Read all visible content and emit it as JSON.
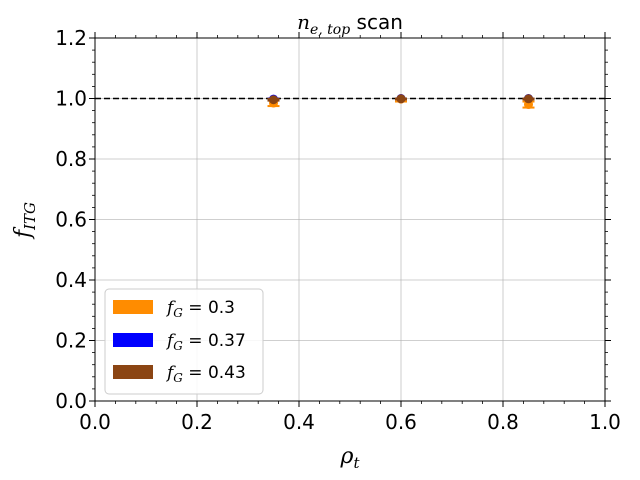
{
  "chart_data": {
    "type": "scatter",
    "title": {
      "main": "n",
      "sub": "e, top",
      "suffix": " scan"
    },
    "xlabel": {
      "main": "ρ",
      "sub": "t"
    },
    "ylabel": {
      "main": "f",
      "sub": "ITG"
    },
    "xlim": [
      0.0,
      1.0
    ],
    "ylim": [
      0.0,
      1.2
    ],
    "xticks": [
      "0.0",
      "0.2",
      "0.4",
      "0.6",
      "0.8",
      "1.0"
    ],
    "yticks": [
      "0.0",
      "0.2",
      "0.4",
      "0.6",
      "0.8",
      "1.0",
      "1.2"
    ],
    "grid": true,
    "reference_line": {
      "y": 1.0,
      "style": "dashed",
      "color": "#000000"
    },
    "legend_position": "lower-left",
    "series": [
      {
        "name_main": "f",
        "name_sub": "G",
        "name_value": " = 0.3",
        "color": "#ff8c00",
        "x": [
          0.35,
          0.6,
          0.85
        ],
        "y": [
          0.985,
          0.998,
          0.98
        ],
        "y_low": [
          0.975,
          0.99,
          0.97
        ],
        "y_high": [
          0.995,
          1.0,
          0.99
        ]
      },
      {
        "name_main": "f",
        "name_sub": "G",
        "name_value": " = 0.37",
        "color": "#0000ff",
        "x": [
          0.35,
          0.6,
          0.85
        ],
        "y": [
          0.998,
          1.0,
          1.0
        ],
        "y_low": [
          0.995,
          0.998,
          0.998
        ],
        "y_high": [
          1.0,
          1.0,
          1.0
        ]
      },
      {
        "name_main": "f",
        "name_sub": "G",
        "name_value": " = 0.43",
        "color": "#8b4513",
        "x": [
          0.35,
          0.6,
          0.85
        ],
        "y": [
          0.996,
          0.999,
          0.999
        ],
        "y_low": [
          0.993,
          0.997,
          0.997
        ],
        "y_high": [
          0.999,
          1.0,
          1.0
        ]
      }
    ]
  }
}
